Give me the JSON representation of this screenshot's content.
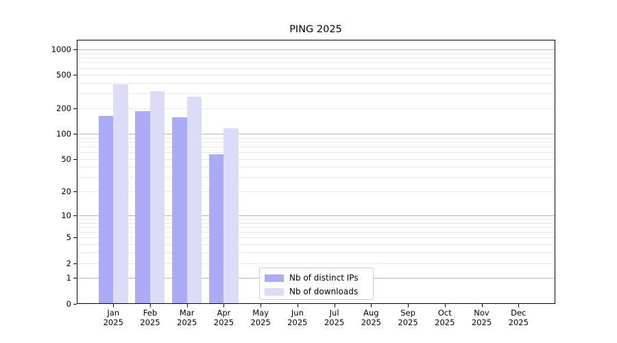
{
  "title": "PING 2025",
  "chart_data": {
    "type": "bar",
    "title": "PING 2025",
    "categories": [
      "Jan 2025",
      "Feb 2025",
      "Mar 2025",
      "Apr 2025",
      "May 2025",
      "Jun 2025",
      "Jul 2025",
      "Aug 2025",
      "Sep 2025",
      "Oct 2025",
      "Nov 2025",
      "Dec 2025"
    ],
    "x_axis": {
      "months": [
        "Jan",
        "Feb",
        "Mar",
        "Apr",
        "May",
        "Jun",
        "Jul",
        "Aug",
        "Sep",
        "Oct",
        "Nov",
        "Dec"
      ],
      "year_line": "2025"
    },
    "y_axis": {
      "scale": "log10(1+y)",
      "ticks": [
        0,
        1,
        2,
        5,
        10,
        20,
        50,
        100,
        200,
        500,
        1000
      ],
      "major_grid_values": [
        1,
        10,
        100,
        1000
      ],
      "minor_grid": true
    },
    "series": [
      {
        "name": "Nb of distinct IPs",
        "color": "#aaaaf5",
        "values": [
          163,
          187,
          157,
          57,
          0,
          0,
          0,
          0,
          0,
          0,
          0,
          0
        ]
      },
      {
        "name": "Nb of downloads",
        "color": "#dcdcf8",
        "values": [
          388,
          322,
          275,
          117,
          0,
          0,
          0,
          0,
          0,
          0,
          0,
          0
        ]
      }
    ],
    "legend": {
      "position": "lower center",
      "entries": [
        "Nb of distinct IPs",
        "Nb of downloads"
      ]
    },
    "grid": true
  },
  "colors": {
    "bar_distinct_ips": "#aaaaf5",
    "bar_downloads": "#dcdcf8",
    "grid_major": "#b4b4b4",
    "grid_minor": "#e8e8e8",
    "spine": "#000000",
    "legend_border": "#cccccc",
    "background": "#ffffff",
    "text": "#000000"
  }
}
